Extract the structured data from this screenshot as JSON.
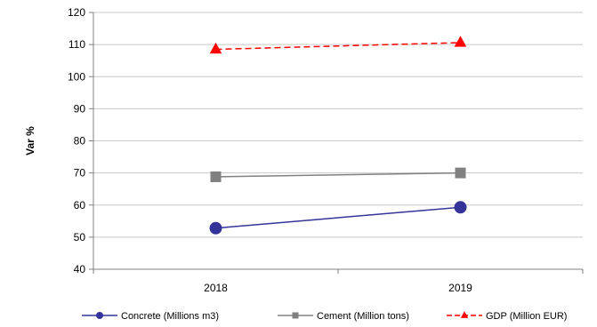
{
  "chart_data": {
    "type": "line",
    "title": "",
    "xlabel": "",
    "ylabel": "Var %",
    "ylim": [
      40,
      120
    ],
    "yticks": [
      40,
      50,
      60,
      70,
      80,
      90,
      100,
      110,
      120
    ],
    "categories": [
      "2018",
      "2019"
    ],
    "grid": "horizontal",
    "legend_position": "bottom",
    "series": [
      {
        "name": "Concrete (Millions m3)",
        "values": [
          52.8,
          59.3
        ],
        "color": "#333399",
        "marker": "circle",
        "dash": "solid"
      },
      {
        "name": "Cement (Million tons)",
        "values": [
          68.8,
          70.0
        ],
        "color": "#808080",
        "marker": "square",
        "dash": "solid"
      },
      {
        "name": "GDP (Million EUR)",
        "values": [
          108.5,
          110.6
        ],
        "color": "#ff0000",
        "marker": "triangle",
        "dash": "dashed"
      }
    ]
  }
}
